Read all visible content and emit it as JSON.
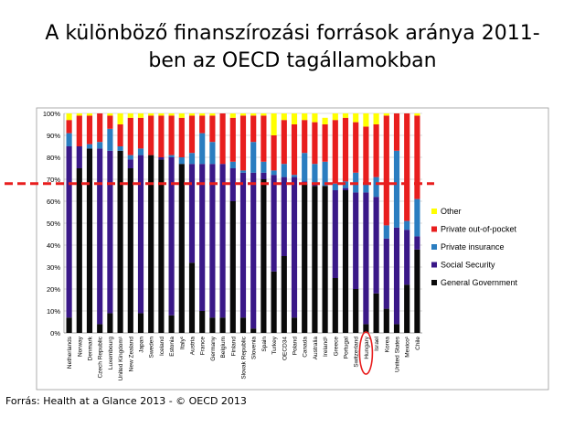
{
  "slide": {
    "title_line1": "A különböző finanszírozási források aránya 2011-",
    "title_line2": "ben az OECD tagállamokban",
    "source": "Forrás: Health at a Glance 2013 - © OECD 2013"
  },
  "colors": {
    "General Government": "#0a0a0a",
    "Social Security": "#3a1888",
    "Private insurance": "#2a7dc0",
    "Private out-of-pocket": "#e81e1e",
    "Other": "#ffff00",
    "reference_line": "#e81e1e",
    "highlight_ellipse": "#e81e1e"
  },
  "chart_data": {
    "type": "bar",
    "stacked": true,
    "ylim": [
      0,
      100
    ],
    "y_ticks": [
      "0%",
      "10%",
      "20%",
      "30%",
      "40%",
      "50%",
      "60%",
      "70%",
      "80%",
      "90%",
      "100%"
    ],
    "grid": true,
    "legend_position": "right",
    "reference_line_y": 68,
    "highlighted_category": "Hungary",
    "categories": [
      "Netherlands",
      "Norway",
      "Denmark",
      "Czech Republic",
      "Luxembourg",
      "United Kingdom",
      "New Zealand",
      "Japan",
      "Sweden",
      "Iceland",
      "Estonia",
      "Italy",
      "Austria",
      "France",
      "Germany",
      "Belgium",
      "Finland",
      "Slovak Republic",
      "Slovenia",
      "Spain",
      "Turkey",
      "OECD34",
      "Poland",
      "Canada",
      "Australia",
      "Ireland",
      "Greece",
      "Portugal",
      "Switzerland",
      "Hungary",
      "Israel",
      "Korea",
      "United States",
      "Mexico",
      "Chile"
    ],
    "series": [
      {
        "name": "General Government",
        "values": [
          7,
          75,
          84,
          4,
          9,
          83,
          75,
          9,
          81,
          79,
          8,
          77,
          32,
          10,
          7,
          7,
          60,
          7,
          2,
          70,
          28,
          35,
          7,
          68,
          67,
          67,
          25,
          65,
          20,
          4,
          18,
          11,
          4,
          22,
          38
        ]
      },
      {
        "name": "Social Security",
        "values": [
          78,
          10,
          0,
          80,
          74,
          0,
          4,
          72,
          0,
          1,
          72,
          0,
          45,
          67,
          70,
          70,
          15,
          66,
          71,
          3,
          44,
          36,
          64,
          1,
          1,
          0,
          40,
          1,
          44,
          60,
          44,
          32,
          44,
          25,
          6
        ]
      },
      {
        "name": "Private insurance",
        "values": [
          6,
          0,
          2,
          3,
          10,
          2,
          2,
          3,
          0,
          0,
          1,
          3,
          5,
          14,
          10,
          0,
          3,
          1,
          14,
          5,
          2,
          6,
          1,
          13,
          9,
          11,
          3,
          3,
          9,
          4,
          9,
          6,
          35,
          4,
          17
        ]
      },
      {
        "name": "Private out-of-pocket",
        "values": [
          6,
          14,
          13,
          13,
          6,
          10,
          17,
          14,
          18,
          19,
          18,
          18,
          17,
          8,
          12,
          23,
          20,
          25,
          12,
          21,
          16,
          20,
          23,
          15,
          19,
          17,
          29,
          29,
          23,
          26,
          24,
          50,
          17,
          49,
          38
        ]
      },
      {
        "name": "Other",
        "values": [
          3,
          1,
          1,
          0,
          1,
          5,
          2,
          2,
          1,
          1,
          1,
          2,
          1,
          1,
          1,
          0,
          2,
          1,
          1,
          1,
          10,
          3,
          5,
          3,
          4,
          3,
          3,
          2,
          4,
          6,
          5,
          1,
          0,
          0,
          1
        ]
      }
    ],
    "legend": [
      "Other",
      "Private out-of-pocket",
      "Private insurance",
      "Social Security",
      "General Government"
    ],
    "category_labels_shown": [
      "Netherlands",
      "Norway",
      "Denmark",
      "Czech Republic",
      "Luxembourg",
      "United Kingdom¹",
      "New Zealand",
      "Japan",
      "Sweden",
      "Iceland",
      "Estonia",
      "Italy¹",
      "Austria",
      "France",
      "Germany",
      "Belgium",
      "Finland",
      "Slovak Republic",
      "Slovenia",
      "Spain",
      "Turkey",
      "OECD34",
      "Poland",
      "Canada",
      "Australia",
      "Ireland¹",
      "Greece",
      "Portugal",
      "Switzerland",
      "Hungary",
      "Israel",
      "Korea",
      "United States",
      "Mexico¹",
      "Chile"
    ]
  }
}
